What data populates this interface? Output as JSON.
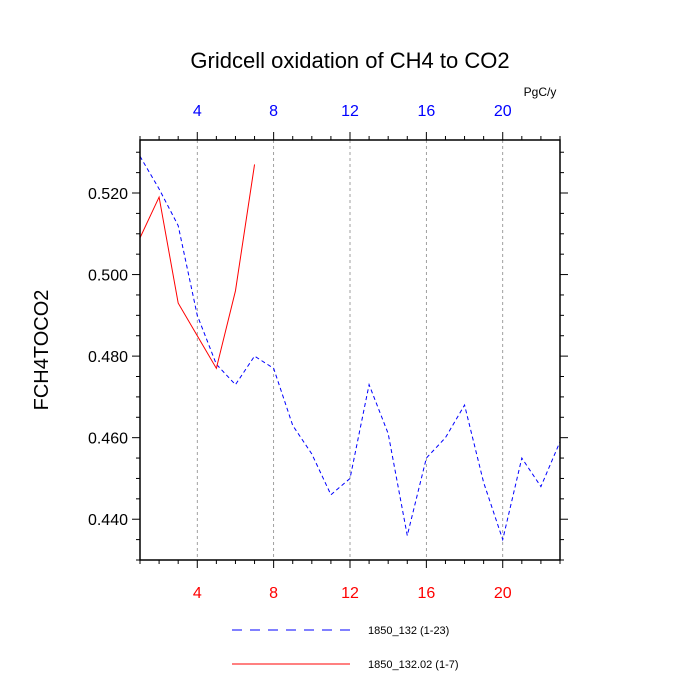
{
  "chart_data": {
    "type": "line",
    "title": "Gridcell oxidation of CH4 to CO2",
    "ylabel": "FCH4TOCO2",
    "xlabel": "",
    "top_axis_unit": "PgC/y",
    "xlim": [
      1,
      23
    ],
    "ylim": [
      0.43,
      0.533
    ],
    "x_ticks": [
      4,
      8,
      12,
      16,
      20
    ],
    "x_tick_labels": [
      "4",
      "8",
      "12",
      "16",
      "20"
    ],
    "y_ticks": [
      0.44,
      0.46,
      0.48,
      0.5,
      0.52
    ],
    "y_tick_labels": [
      "0.440",
      "0.460",
      "0.480",
      "0.500",
      "0.520"
    ],
    "grid": "vertical dashed at major x ticks",
    "series": [
      {
        "name": "1850_132 (1-23)",
        "color": "#0000ff",
        "style": "dashed",
        "x": [
          1,
          2,
          3,
          4,
          5,
          6,
          7,
          8,
          9,
          10,
          11,
          12,
          13,
          14,
          15,
          16,
          17,
          18,
          19,
          20,
          21,
          22,
          23
        ],
        "values": [
          0.529,
          0.521,
          0.512,
          0.49,
          0.478,
          0.473,
          0.48,
          0.477,
          0.463,
          0.456,
          0.446,
          0.45,
          0.473,
          0.461,
          0.436,
          0.455,
          0.46,
          0.468,
          0.449,
          0.435,
          0.455,
          0.448,
          0.459
        ]
      },
      {
        "name": "1850_132.02 (1-7)",
        "color": "#ff0000",
        "style": "solid",
        "x": [
          1,
          2,
          3,
          4,
          5,
          6,
          7
        ],
        "values": [
          0.509,
          0.519,
          0.493,
          0.485,
          0.477,
          0.496,
          0.527
        ]
      }
    ],
    "legend_position": "bottom"
  }
}
